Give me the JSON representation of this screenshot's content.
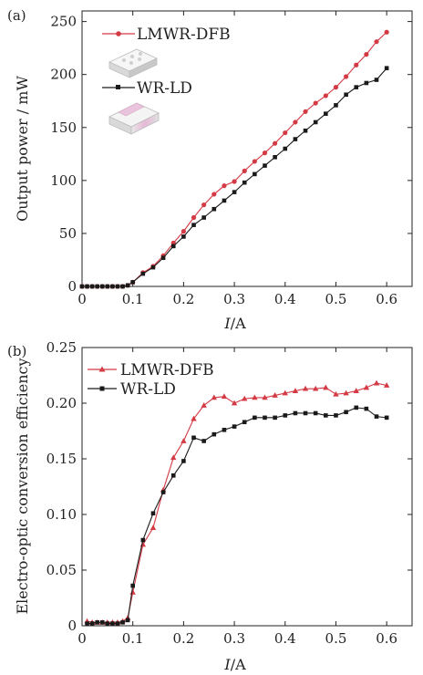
{
  "chart_data": [
    {
      "type": "line",
      "panel_label": "(a)",
      "xlabel_italic": "I",
      "xlabel_unit": "/A",
      "ylabel": "Output power / mW",
      "xlim": [
        0,
        0.65
      ],
      "ylim": [
        0,
        260
      ],
      "xticks": [
        0,
        0.1,
        0.2,
        0.3,
        0.4,
        0.5,
        0.6
      ],
      "xtick_labels": [
        "0",
        "0.1",
        "0.2",
        "0.3",
        "0.4",
        "0.5",
        "0.6"
      ],
      "yticks": [
        0,
        50,
        100,
        150,
        200,
        250
      ],
      "ytick_labels": [
        "0",
        "50",
        "100",
        "150",
        "200",
        "250"
      ],
      "legend_position": "top-left",
      "series": [
        {
          "name": "LMWR-DFB",
          "color": "#d43a44",
          "marker": "circle",
          "x": [
            0,
            0.01,
            0.02,
            0.03,
            0.04,
            0.05,
            0.06,
            0.07,
            0.08,
            0.09,
            0.1,
            0.12,
            0.14,
            0.16,
            0.18,
            0.2,
            0.22,
            0.24,
            0.26,
            0.28,
            0.3,
            0.32,
            0.34,
            0.36,
            0.38,
            0.4,
            0.42,
            0.44,
            0.46,
            0.48,
            0.5,
            0.52,
            0.54,
            0.56,
            0.58,
            0.6
          ],
          "y": [
            0,
            0,
            0,
            0,
            0,
            0,
            0,
            0,
            0,
            1,
            4,
            13,
            19,
            29,
            41,
            52,
            65,
            77,
            87,
            95,
            99,
            109,
            118,
            126,
            135,
            145,
            155,
            165,
            173,
            180,
            188,
            198,
            209,
            219,
            231,
            240
          ]
        },
        {
          "name": "WR-LD",
          "color": "#1a1a1a",
          "marker": "square",
          "x": [
            0,
            0.01,
            0.02,
            0.03,
            0.04,
            0.05,
            0.06,
            0.07,
            0.08,
            0.09,
            0.1,
            0.12,
            0.14,
            0.16,
            0.18,
            0.2,
            0.22,
            0.24,
            0.26,
            0.28,
            0.3,
            0.32,
            0.34,
            0.36,
            0.38,
            0.4,
            0.42,
            0.44,
            0.46,
            0.48,
            0.5,
            0.52,
            0.54,
            0.56,
            0.58,
            0.6
          ],
          "y": [
            0,
            0,
            0,
            0,
            0,
            0,
            0,
            0,
            0,
            1,
            4,
            12,
            18,
            27,
            38,
            47,
            58,
            65,
            73,
            81,
            89,
            98,
            106,
            114,
            122,
            130,
            139,
            147,
            155,
            163,
            171,
            181,
            188,
            192,
            195,
            206
          ]
        }
      ]
    },
    {
      "type": "line",
      "panel_label": "(b)",
      "xlabel_italic": "I",
      "xlabel_unit": "/A",
      "ylabel": "Electro-optic conversion efficiency",
      "xlim": [
        0,
        0.65
      ],
      "ylim": [
        0,
        0.25
      ],
      "xticks": [
        0,
        0.1,
        0.2,
        0.3,
        0.4,
        0.5,
        0.6
      ],
      "xtick_labels": [
        "0",
        "0.1",
        "0.2",
        "0.3",
        "0.4",
        "0.5",
        "0.6"
      ],
      "yticks": [
        0,
        0.05,
        0.1,
        0.15,
        0.2,
        0.25
      ],
      "ytick_labels": [
        "0",
        "0.05",
        "0.10",
        "0.15",
        "0.20",
        "0.25"
      ],
      "legend_position": "top-left",
      "series": [
        {
          "name": "LMWR-DFB",
          "color": "#d43a44",
          "marker": "triangle",
          "x": [
            0.01,
            0.02,
            0.03,
            0.04,
            0.05,
            0.06,
            0.07,
            0.08,
            0.09,
            0.1,
            0.12,
            0.14,
            0.16,
            0.18,
            0.2,
            0.22,
            0.24,
            0.26,
            0.28,
            0.3,
            0.32,
            0.34,
            0.36,
            0.38,
            0.4,
            0.42,
            0.44,
            0.46,
            0.48,
            0.5,
            0.52,
            0.54,
            0.56,
            0.58,
            0.6
          ],
          "y": [
            0.004,
            0.003,
            0.003,
            0.003,
            0.003,
            0.003,
            0.003,
            0.004,
            0.007,
            0.03,
            0.073,
            0.088,
            0.122,
            0.151,
            0.166,
            0.186,
            0.198,
            0.205,
            0.206,
            0.2,
            0.204,
            0.205,
            0.205,
            0.207,
            0.209,
            0.211,
            0.213,
            0.213,
            0.214,
            0.208,
            0.209,
            0.211,
            0.214,
            0.218,
            0.216
          ]
        },
        {
          "name": "WR-LD",
          "color": "#1a1a1a",
          "marker": "square",
          "x": [
            0.01,
            0.02,
            0.03,
            0.04,
            0.05,
            0.06,
            0.07,
            0.08,
            0.09,
            0.1,
            0.12,
            0.14,
            0.16,
            0.18,
            0.2,
            0.22,
            0.24,
            0.26,
            0.28,
            0.3,
            0.32,
            0.34,
            0.36,
            0.38,
            0.4,
            0.42,
            0.44,
            0.46,
            0.48,
            0.5,
            0.52,
            0.54,
            0.56,
            0.58,
            0.6
          ],
          "y": [
            0.002,
            0.002,
            0.003,
            0.003,
            0.002,
            0.002,
            0.002,
            0.003,
            0.005,
            0.036,
            0.077,
            0.101,
            0.12,
            0.135,
            0.148,
            0.169,
            0.166,
            0.172,
            0.176,
            0.179,
            0.183,
            0.187,
            0.187,
            0.187,
            0.189,
            0.191,
            0.191,
            0.191,
            0.189,
            0.189,
            0.192,
            0.196,
            0.195,
            0.188,
            0.187
          ]
        }
      ]
    }
  ]
}
